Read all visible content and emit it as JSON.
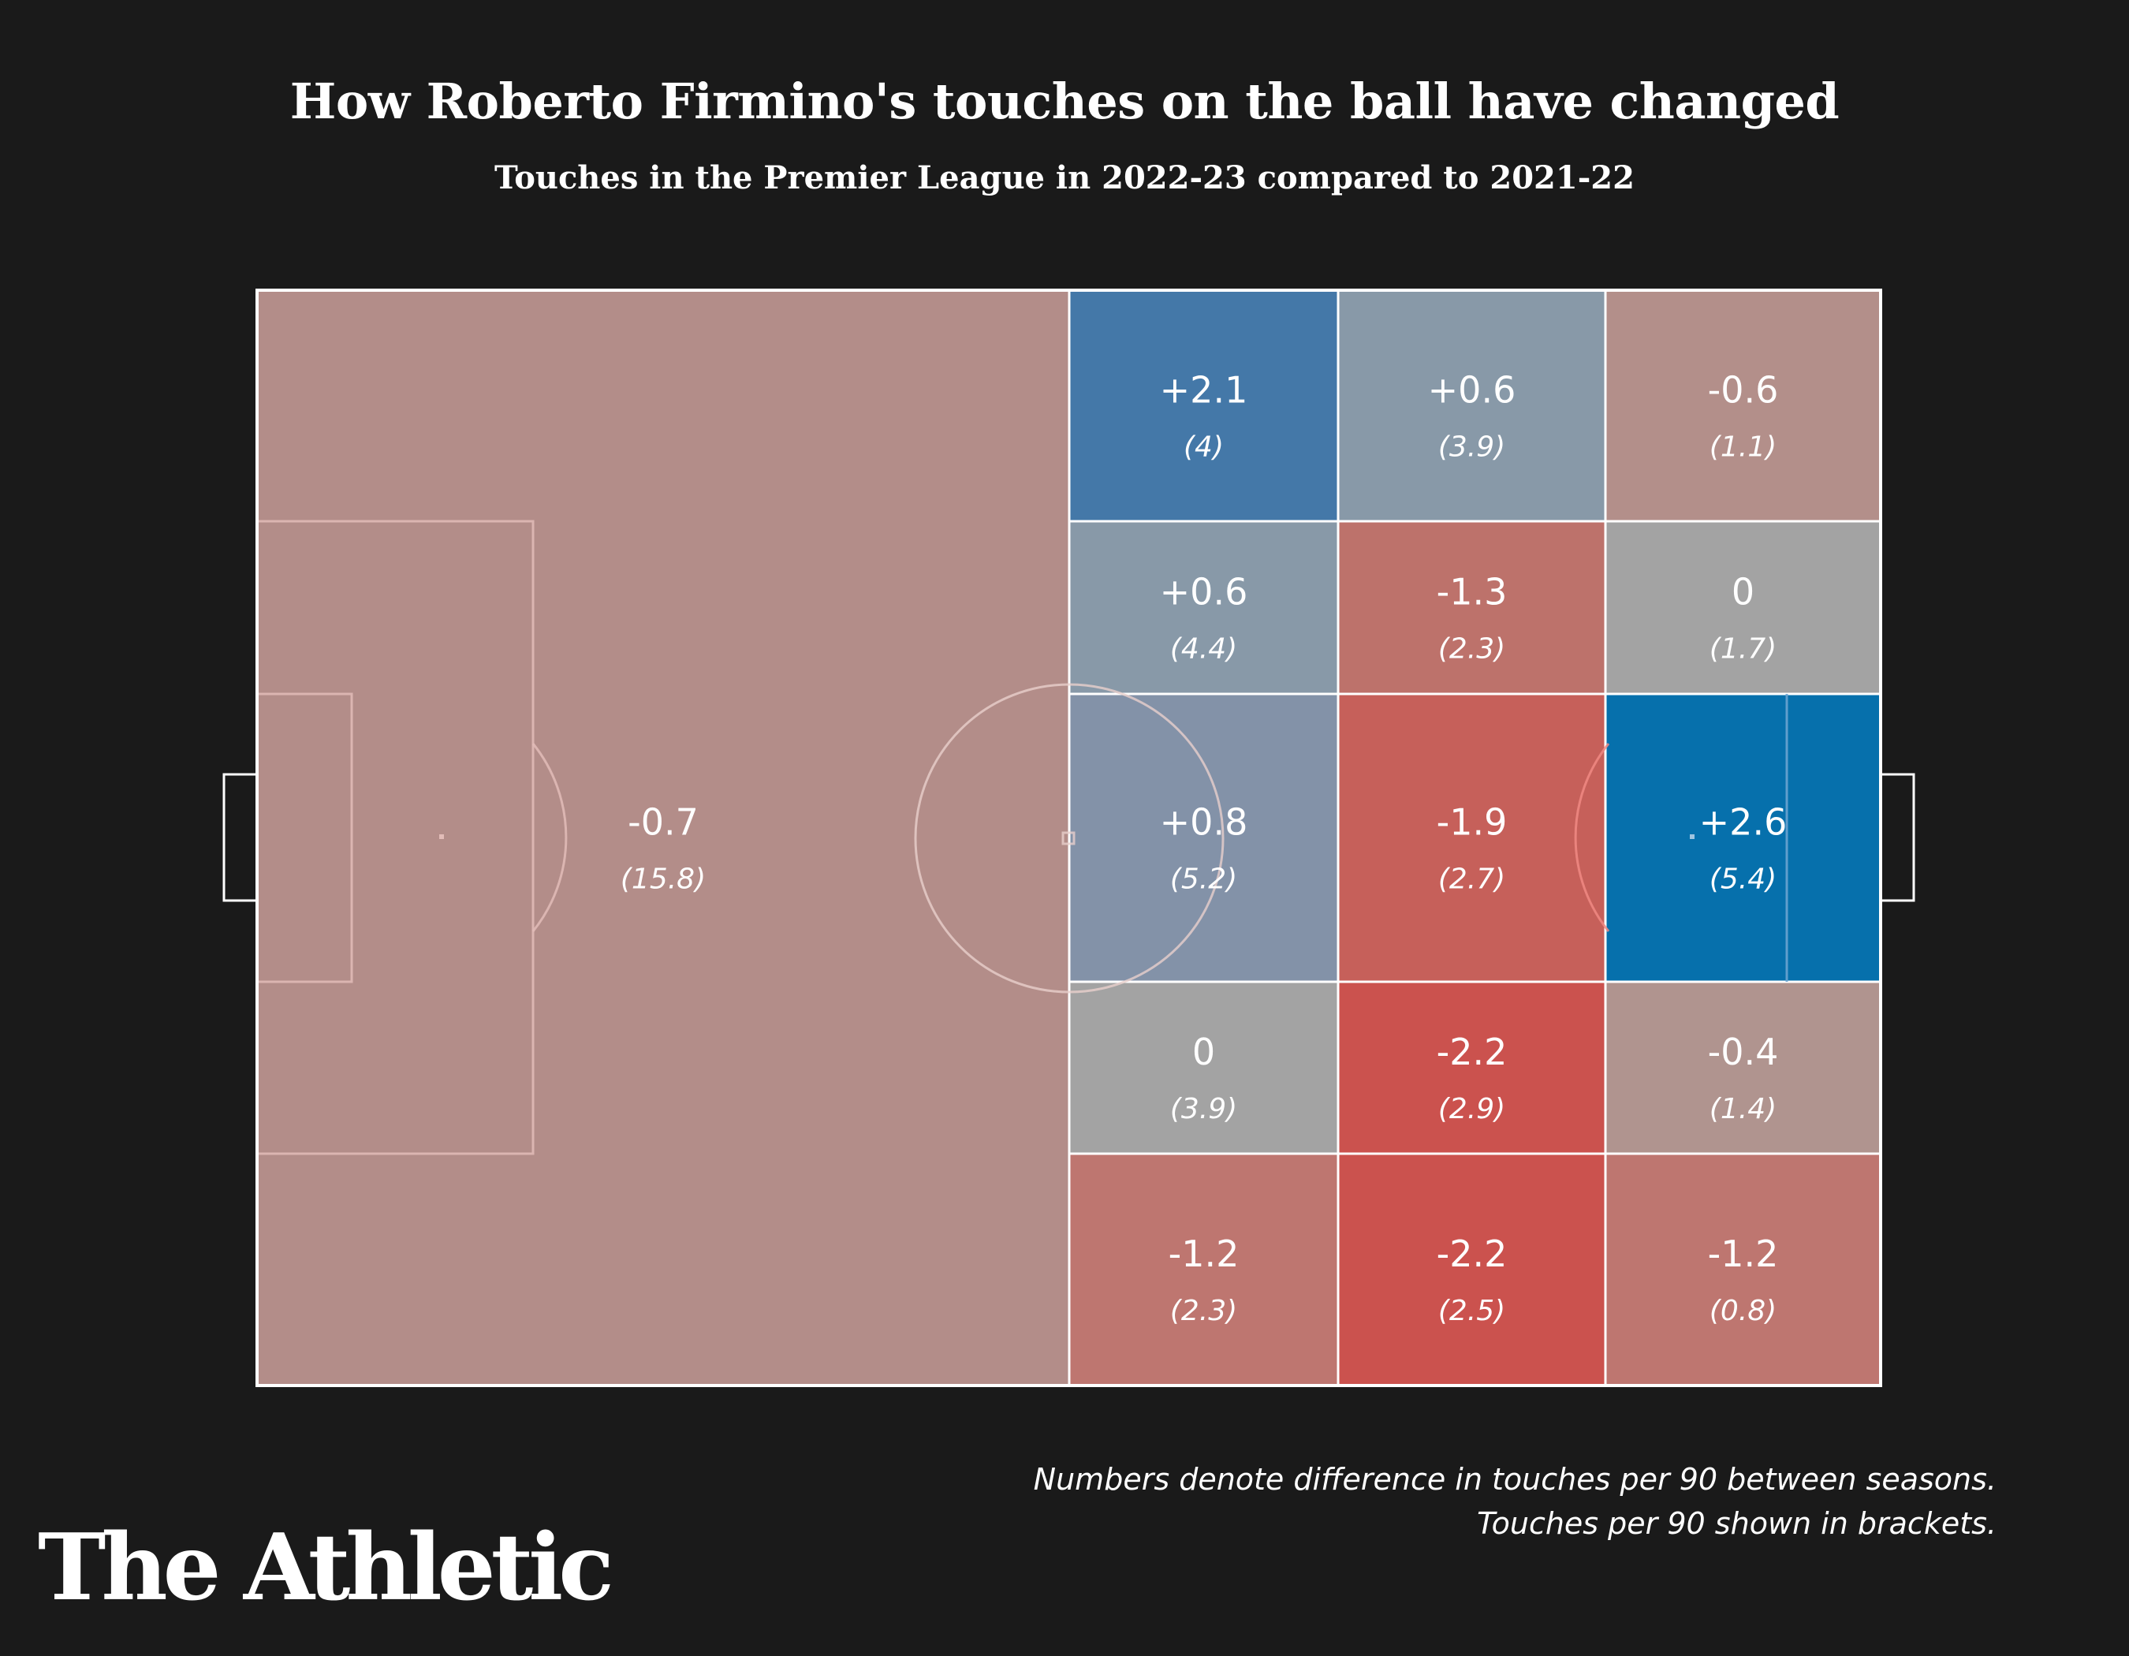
{
  "header": {
    "title": "How Roberto Firmino's touches on the ball have changed",
    "subtitle": "Touches in the Premier League in 2022-23 compared to 2021-22"
  },
  "chart_data": {
    "type": "heatmap",
    "columns": 3,
    "rows": 5,
    "zones": [
      {
        "zone": "own half",
        "row": "all",
        "col": "all",
        "diff": "-0.7",
        "per90": "(15.8)",
        "value": -0.7,
        "color": "#b38d89"
      },
      {
        "row": 1,
        "col": 1,
        "diff": "+2.1",
        "per90": "(4)",
        "value": 2.1,
        "color": "#4478a8"
      },
      {
        "row": 1,
        "col": 2,
        "diff": "+0.6",
        "per90": "(3.9)",
        "value": 0.6,
        "color": "#8899a8"
      },
      {
        "row": 1,
        "col": 3,
        "diff": "-0.6",
        "per90": "(1.1)",
        "value": -0.6,
        "color": "#b38f8a"
      },
      {
        "row": 2,
        "col": 1,
        "diff": "+0.6",
        "per90": "(4.4)",
        "value": 0.6,
        "color": "#8899a8"
      },
      {
        "row": 2,
        "col": 2,
        "diff": "-1.3",
        "per90": "(2.3)",
        "value": -1.3,
        "color": "#bd726b"
      },
      {
        "row": 2,
        "col": 3,
        "diff": "0",
        "per90": "(1.7)",
        "value": 0,
        "color": "#a3a3a3"
      },
      {
        "row": 3,
        "col": 1,
        "diff": "+0.8",
        "per90": "(5.2)",
        "value": 0.8,
        "color": "#8392a8"
      },
      {
        "row": 3,
        "col": 2,
        "diff": "-1.9",
        "per90": "(2.7)",
        "value": -1.9,
        "color": "#c6605a"
      },
      {
        "row": 3,
        "col": 3,
        "diff": "+2.6",
        "per90": "(5.4)",
        "value": 2.6,
        "color": "#0670ac"
      },
      {
        "row": 4,
        "col": 1,
        "diff": "0",
        "per90": "(3.9)",
        "value": 0,
        "color": "#a3a3a3"
      },
      {
        "row": 4,
        "col": 2,
        "diff": "-2.2",
        "per90": "(2.9)",
        "value": -2.2,
        "color": "#cb524e"
      },
      {
        "row": 4,
        "col": 3,
        "diff": "-0.4",
        "per90": "(1.4)",
        "value": -0.4,
        "color": "#b0948f"
      },
      {
        "row": 5,
        "col": 1,
        "diff": "-1.2",
        "per90": "(2.3)",
        "value": -1.2,
        "color": "#be7670"
      },
      {
        "row": 5,
        "col": 2,
        "diff": "-2.2",
        "per90": "(2.5)",
        "value": -2.2,
        "color": "#cb524e"
      },
      {
        "row": 5,
        "col": 3,
        "diff": "-1.2",
        "per90": "(0.8)",
        "value": -1.2,
        "color": "#be7670"
      }
    ]
  },
  "footer": {
    "note_line1": "Numbers denote difference in touches per 90 between seasons.",
    "note_line2": "Touches per 90 shown in brackets.",
    "brand": "The Athletic"
  }
}
